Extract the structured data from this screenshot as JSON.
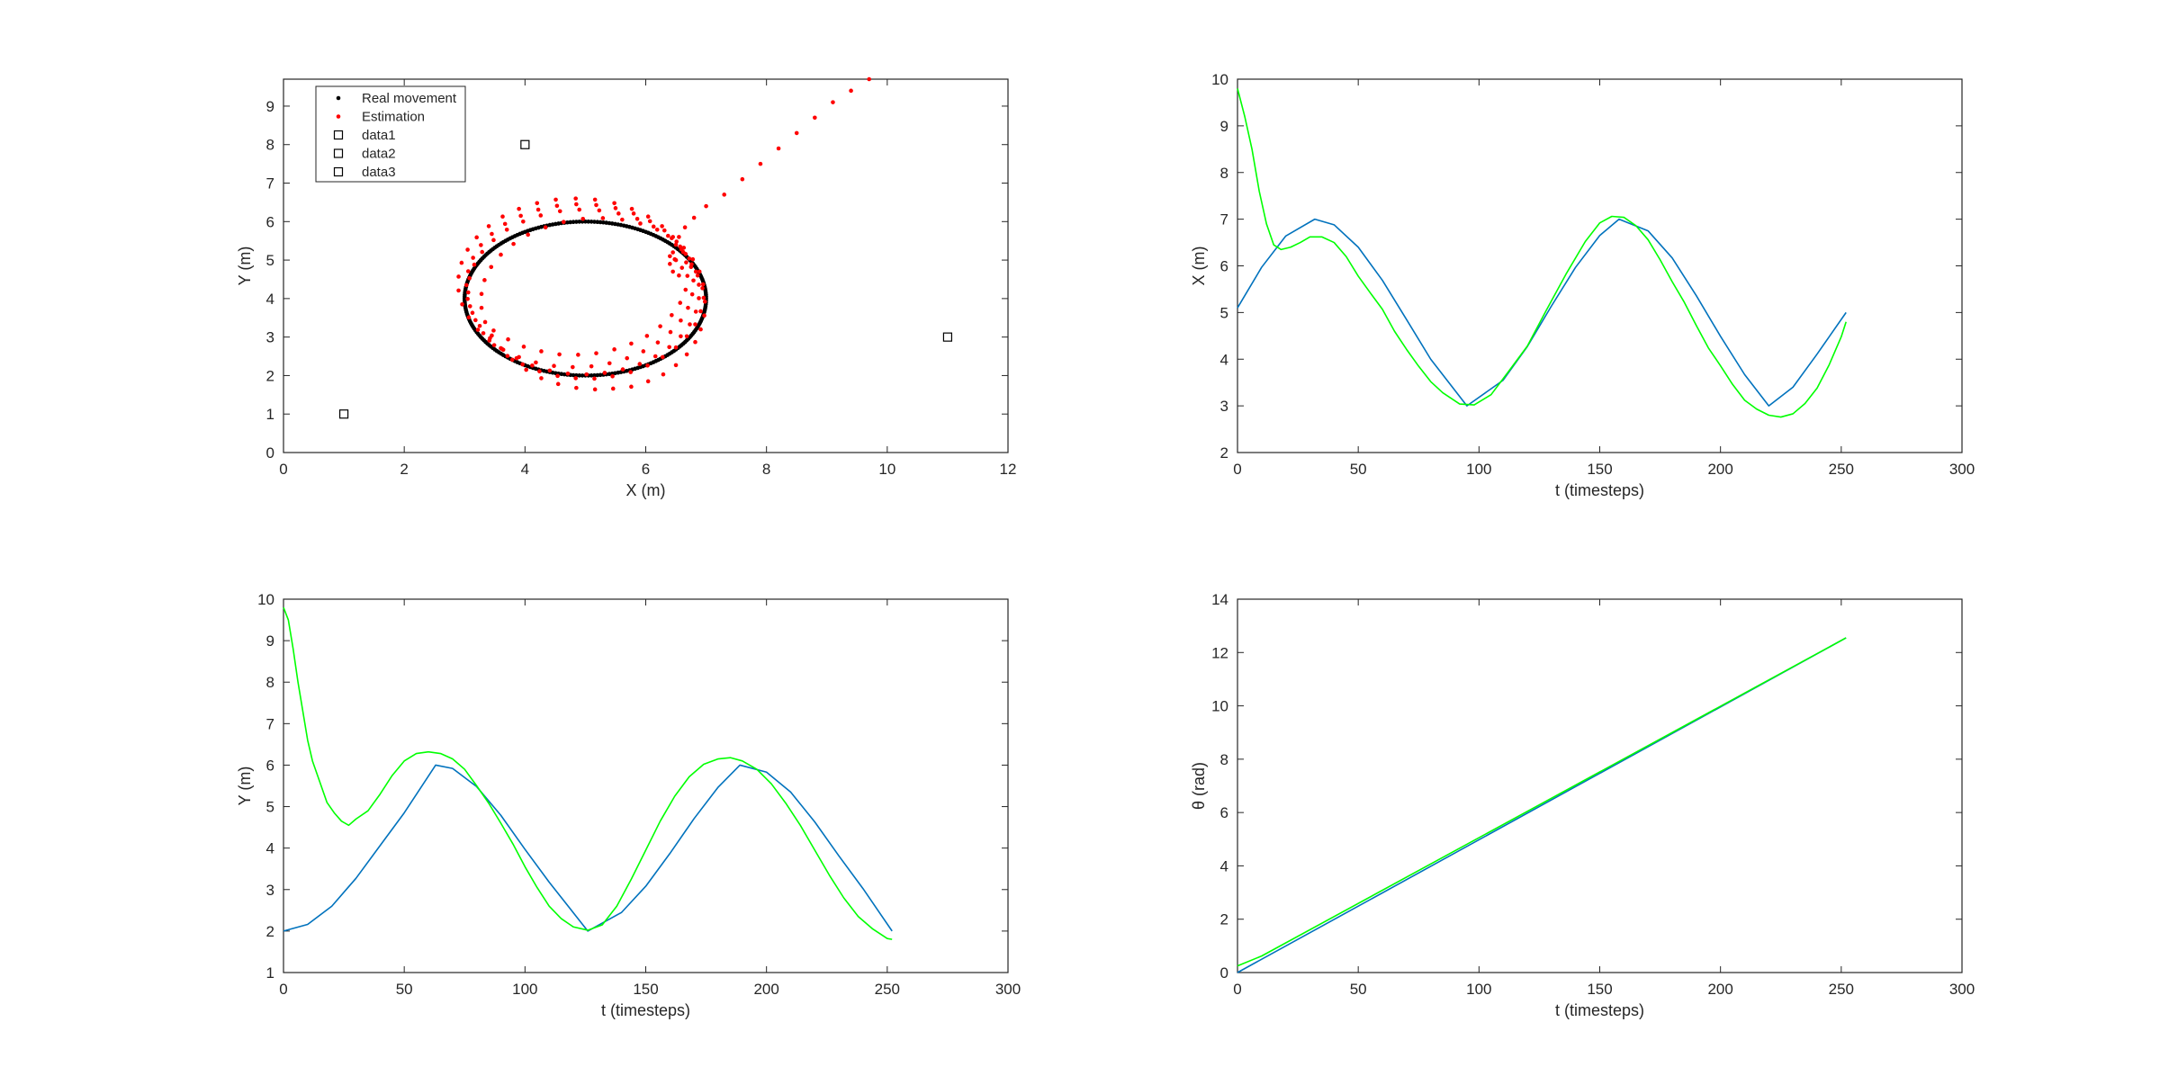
{
  "figure": {
    "panels": [
      {
        "id": "panel-trajectory",
        "xlabel": "X (m)",
        "ylabel": "Y (m)"
      },
      {
        "id": "panel-x-vs-t",
        "xlabel": "t (timesteps)",
        "ylabel": "X (m)"
      },
      {
        "id": "panel-y-vs-t",
        "xlabel": "t (timesteps)",
        "ylabel": "Y (m)"
      },
      {
        "id": "panel-theta-vs-t",
        "xlabel": "t (timesteps)",
        "ylabel": "θ (rad)"
      }
    ]
  },
  "colors": {
    "real": "#0072BD",
    "estimate": "#00FF00",
    "real_dots": "#000000",
    "estimate_dots": "#FF0000",
    "axis": "#262626"
  },
  "chart_data": [
    {
      "type": "scatter",
      "xlabel": "X (m)",
      "ylabel": "Y (m)",
      "xlim": [
        0,
        12
      ],
      "ylim": [
        0,
        9.7
      ],
      "xticks": [
        0,
        2,
        4,
        6,
        8,
        10,
        12
      ],
      "yticks": [
        0,
        1,
        2,
        3,
        4,
        5,
        6,
        7,
        8,
        9
      ],
      "grid": false,
      "legend": {
        "position": "top-left",
        "entries": [
          "Real movement",
          "Estimation",
          "data1",
          "data2",
          "data3"
        ]
      },
      "real_path": {
        "name": "Real movement",
        "shape": "circle",
        "center": [
          5,
          4
        ],
        "radius_x": 2,
        "radius_y": 2,
        "points": 252
      },
      "estimate_points": [
        [
          9.7,
          9.7
        ],
        [
          9.4,
          9.4
        ],
        [
          9.1,
          9.1
        ],
        [
          8.8,
          8.7
        ],
        [
          8.5,
          8.3
        ],
        [
          8.2,
          7.9
        ],
        [
          7.9,
          7.5
        ],
        [
          7.6,
          7.1
        ],
        [
          7.3,
          6.7
        ],
        [
          7.0,
          6.4
        ],
        [
          6.8,
          6.1
        ],
        [
          6.65,
          5.85
        ],
        [
          6.55,
          5.6
        ],
        [
          6.5,
          5.4
        ],
        [
          6.45,
          5.2
        ],
        [
          6.5,
          5.0
        ],
        [
          6.6,
          4.8
        ],
        [
          6.55,
          4.6
        ],
        [
          6.45,
          4.7
        ],
        [
          6.4,
          4.9
        ],
        [
          6.4,
          5.1
        ],
        [
          6.48,
          5.02
        ],
        [
          6.62,
          5.21
        ],
        [
          6.76,
          4.89
        ],
        [
          6.86,
          4.6
        ],
        [
          6.94,
          4.27
        ],
        [
          6.98,
          3.92
        ],
        [
          6.97,
          3.56
        ],
        [
          6.91,
          3.2
        ],
        [
          6.82,
          2.87
        ],
        [
          6.68,
          2.55
        ],
        [
          6.5,
          2.27
        ],
        [
          6.29,
          2.03
        ],
        [
          6.04,
          1.85
        ],
        [
          5.76,
          1.71
        ],
        [
          5.46,
          1.66
        ],
        [
          5.16,
          1.64
        ],
        [
          4.85,
          1.68
        ],
        [
          4.55,
          1.78
        ],
        [
          4.27,
          1.93
        ],
        [
          4.02,
          2.15
        ],
        [
          3.79,
          2.41
        ],
        [
          3.6,
          2.71
        ],
        [
          3.45,
          3.04
        ],
        [
          3.34,
          3.39
        ],
        [
          3.28,
          3.76
        ],
        [
          3.28,
          4.12
        ],
        [
          3.33,
          4.48
        ],
        [
          3.44,
          4.82
        ],
        [
          3.6,
          5.14
        ],
        [
          3.81,
          5.42
        ],
        [
          4.05,
          5.66
        ],
        [
          4.34,
          5.85
        ],
        [
          4.64,
          5.99
        ],
        [
          4.96,
          6.07
        ],
        [
          5.29,
          6.09
        ],
        [
          5.61,
          6.05
        ],
        [
          5.91,
          5.95
        ],
        [
          6.19,
          5.79
        ],
        [
          6.43,
          5.57
        ],
        [
          6.63,
          5.32
        ],
        [
          6.78,
          5.02
        ],
        [
          6.89,
          4.7
        ],
        [
          6.95,
          4.37
        ],
        [
          6.96,
          4.02
        ],
        [
          6.91,
          3.67
        ],
        [
          6.82,
          3.33
        ],
        [
          6.68,
          3.02
        ],
        [
          6.5,
          2.73
        ],
        [
          6.28,
          2.48
        ],
        [
          6.03,
          2.26
        ],
        [
          5.75,
          2.09
        ],
        [
          5.45,
          1.98
        ],
        [
          5.15,
          1.92
        ],
        [
          4.84,
          1.93
        ],
        [
          4.54,
          1.99
        ],
        [
          4.24,
          2.11
        ],
        [
          3.96,
          2.29
        ],
        [
          3.71,
          2.51
        ],
        [
          3.49,
          2.79
        ],
        [
          3.31,
          3.1
        ],
        [
          3.18,
          3.44
        ],
        [
          3.09,
          3.8
        ],
        [
          3.06,
          4.16
        ],
        [
          3.08,
          4.53
        ],
        [
          3.16,
          4.88
        ],
        [
          3.29,
          5.21
        ],
        [
          3.48,
          5.52
        ],
        [
          3.7,
          5.79
        ],
        [
          3.97,
          6.0
        ],
        [
          4.26,
          6.16
        ],
        [
          4.58,
          6.27
        ],
        [
          4.9,
          6.31
        ],
        [
          5.23,
          6.29
        ],
        [
          5.55,
          6.21
        ],
        [
          5.86,
          6.07
        ],
        [
          6.13,
          5.87
        ],
        [
          6.37,
          5.63
        ],
        [
          6.57,
          5.35
        ],
        [
          6.72,
          5.04
        ],
        [
          6.83,
          4.7
        ],
        [
          6.88,
          4.36
        ],
        [
          6.88,
          4.01
        ],
        [
          6.83,
          3.66
        ],
        [
          6.73,
          3.33
        ],
        [
          6.58,
          3.02
        ],
        [
          6.39,
          2.74
        ],
        [
          6.16,
          2.5
        ],
        [
          5.9,
          2.3
        ],
        [
          5.62,
          2.16
        ],
        [
          5.32,
          2.07
        ],
        [
          5.02,
          2.03
        ],
        [
          4.71,
          2.05
        ],
        [
          4.41,
          2.13
        ],
        [
          4.12,
          2.26
        ],
        [
          3.86,
          2.45
        ],
        [
          3.62,
          2.69
        ],
        [
          3.42,
          2.97
        ],
        [
          3.25,
          3.29
        ],
        [
          3.13,
          3.63
        ],
        [
          3.05,
          3.99
        ],
        [
          3.03,
          4.35
        ],
        [
          3.06,
          4.71
        ],
        [
          3.14,
          5.06
        ],
        [
          3.27,
          5.39
        ],
        [
          3.45,
          5.68
        ],
        [
          3.67,
          5.94
        ],
        [
          3.93,
          6.15
        ],
        [
          4.22,
          6.31
        ],
        [
          4.53,
          6.41
        ],
        [
          4.85,
          6.45
        ],
        [
          5.18,
          6.43
        ],
        [
          5.5,
          6.35
        ],
        [
          5.8,
          6.21
        ],
        [
          6.07,
          6.01
        ],
        [
          6.31,
          5.77
        ],
        [
          6.51,
          5.48
        ],
        [
          6.66,
          5.16
        ],
        [
          6.75,
          4.82
        ],
        [
          6.79,
          4.47
        ],
        [
          6.77,
          4.11
        ],
        [
          6.7,
          3.76
        ],
        [
          6.58,
          3.43
        ],
        [
          6.41,
          3.13
        ],
        [
          6.2,
          2.86
        ],
        [
          5.96,
          2.63
        ],
        [
          5.69,
          2.45
        ],
        [
          5.4,
          2.32
        ],
        [
          5.1,
          2.24
        ],
        [
          4.79,
          2.22
        ],
        [
          4.48,
          2.25
        ],
        [
          4.18,
          2.34
        ],
        [
          3.9,
          2.48
        ],
        [
          3.64,
          2.67
        ],
        [
          3.41,
          2.91
        ],
        [
          3.22,
          3.19
        ],
        [
          3.07,
          3.51
        ],
        [
          2.96,
          3.85
        ],
        [
          2.9,
          4.21
        ],
        [
          2.9,
          4.57
        ],
        [
          2.95,
          4.93
        ],
        [
          3.05,
          5.27
        ],
        [
          3.2,
          5.59
        ],
        [
          3.4,
          5.88
        ],
        [
          3.63,
          6.13
        ],
        [
          3.9,
          6.33
        ],
        [
          4.2,
          6.48
        ],
        [
          4.51,
          6.57
        ],
        [
          4.84,
          6.6
        ],
        [
          5.16,
          6.57
        ],
        [
          5.48,
          6.48
        ],
        [
          5.77,
          6.33
        ],
        [
          6.04,
          6.13
        ],
        [
          6.27,
          5.88
        ],
        [
          6.45,
          5.6
        ],
        [
          6.59,
          5.28
        ],
        [
          6.67,
          4.94
        ],
        [
          6.69,
          4.59
        ],
        [
          6.66,
          4.23
        ],
        [
          6.57,
          3.89
        ],
        [
          6.43,
          3.57
        ],
        [
          6.24,
          3.28
        ],
        [
          6.02,
          3.03
        ],
        [
          5.76,
          2.83
        ],
        [
          5.48,
          2.68
        ],
        [
          5.18,
          2.58
        ],
        [
          4.88,
          2.54
        ],
        [
          4.57,
          2.55
        ],
        [
          4.27,
          2.63
        ],
        [
          3.98,
          2.75
        ],
        [
          3.72,
          2.94
        ],
        [
          3.48,
          3.17
        ]
      ],
      "landmarks": [
        {
          "name": "data1",
          "x": 1,
          "y": 1
        },
        {
          "name": "data2",
          "x": 4,
          "y": 8
        },
        {
          "name": "data3",
          "x": 11,
          "y": 3
        }
      ]
    },
    {
      "type": "line",
      "xlabel": "t (timesteps)",
      "ylabel": "X (m)",
      "xlim": [
        0,
        300
      ],
      "ylim": [
        2,
        10
      ],
      "xticks": [
        0,
        50,
        100,
        150,
        200,
        250,
        300
      ],
      "yticks": [
        2,
        3,
        4,
        5,
        6,
        7,
        8,
        9,
        10
      ],
      "grid": false,
      "series": [
        {
          "role": "real",
          "x": [
            0,
            10,
            20,
            32,
            40,
            50,
            60,
            70,
            80,
            95,
            110,
            120,
            130,
            140,
            150,
            158,
            170,
            180,
            190,
            200,
            210,
            220,
            230,
            240,
            252
          ],
          "values": [
            5.1,
            5.97,
            6.64,
            7.0,
            6.88,
            6.4,
            5.69,
            4.85,
            4.0,
            3.0,
            3.55,
            4.27,
            5.14,
            5.97,
            6.65,
            7.0,
            6.75,
            6.17,
            5.36,
            4.49,
            3.67,
            3.0,
            3.4,
            4.11,
            5.0
          ]
        },
        {
          "role": "estimate",
          "x": [
            0,
            3,
            6,
            9,
            12,
            15,
            18,
            22,
            26,
            30,
            35,
            40,
            45,
            50,
            55,
            60,
            65,
            70,
            75,
            80,
            85,
            92,
            98,
            105,
            112,
            120,
            128,
            136,
            144,
            150,
            155,
            160,
            165,
            170,
            175,
            180,
            185,
            190,
            195,
            200,
            205,
            210,
            215,
            220,
            225,
            230,
            235,
            240,
            245,
            250,
            252
          ],
          "values": [
            9.8,
            9.2,
            8.5,
            7.6,
            6.9,
            6.45,
            6.35,
            6.4,
            6.5,
            6.62,
            6.62,
            6.5,
            6.2,
            5.78,
            5.42,
            5.07,
            4.6,
            4.21,
            3.85,
            3.52,
            3.28,
            3.04,
            3.02,
            3.24,
            3.72,
            4.28,
            5.06,
            5.82,
            6.52,
            6.92,
            7.06,
            7.04,
            6.86,
            6.56,
            6.13,
            5.66,
            5.22,
            4.72,
            4.24,
            3.86,
            3.46,
            3.12,
            2.93,
            2.8,
            2.76,
            2.83,
            3.05,
            3.38,
            3.88,
            4.48,
            4.8
          ]
        }
      ]
    },
    {
      "type": "line",
      "xlabel": "t (timesteps)",
      "ylabel": "Y (m)",
      "xlim": [
        0,
        300
      ],
      "ylim": [
        1,
        10
      ],
      "xticks": [
        0,
        50,
        100,
        150,
        200,
        250,
        300
      ],
      "yticks": [
        1,
        2,
        3,
        4,
        5,
        6,
        7,
        8,
        9,
        10
      ],
      "grid": false,
      "series": [
        {
          "role": "real",
          "x": [
            0,
            10,
            20,
            30,
            40,
            50,
            63,
            70,
            80,
            90,
            100,
            110,
            126,
            140,
            150,
            160,
            170,
            180,
            189,
            200,
            210,
            220,
            230,
            240,
            252
          ],
          "values": [
            2.0,
            2.16,
            2.6,
            3.27,
            4.06,
            4.85,
            6.0,
            5.92,
            5.48,
            4.79,
            3.97,
            3.18,
            2.0,
            2.45,
            3.08,
            3.87,
            4.71,
            5.47,
            6.0,
            5.83,
            5.35,
            4.63,
            3.81,
            3.02,
            2.0
          ]
        },
        {
          "role": "estimate",
          "x": [
            0,
            2,
            4,
            6,
            8,
            10,
            12,
            15,
            18,
            21,
            24,
            27,
            30,
            35,
            40,
            45,
            50,
            55,
            60,
            65,
            70,
            75,
            80,
            85,
            90,
            95,
            100,
            105,
            110,
            115,
            120,
            126,
            132,
            138,
            144,
            150,
            156,
            162,
            168,
            174,
            180,
            185,
            190,
            196,
            202,
            208,
            214,
            220,
            226,
            232,
            238,
            244,
            250,
            252
          ],
          "values": [
            9.8,
            9.5,
            8.8,
            8.0,
            7.3,
            6.6,
            6.1,
            5.6,
            5.1,
            4.85,
            4.65,
            4.55,
            4.7,
            4.9,
            5.3,
            5.75,
            6.1,
            6.28,
            6.32,
            6.28,
            6.15,
            5.9,
            5.5,
            5.08,
            4.6,
            4.1,
            3.55,
            3.05,
            2.6,
            2.3,
            2.1,
            2.02,
            2.15,
            2.6,
            3.25,
            3.95,
            4.65,
            5.25,
            5.72,
            6.02,
            6.15,
            6.18,
            6.1,
            5.9,
            5.55,
            5.08,
            4.55,
            3.95,
            3.35,
            2.8,
            2.35,
            2.05,
            1.82,
            1.8
          ]
        }
      ]
    },
    {
      "type": "line",
      "xlabel": "t (timesteps)",
      "ylabel": "θ (rad)",
      "xlim": [
        0,
        300
      ],
      "ylim": [
        0,
        14
      ],
      "xticks": [
        0,
        50,
        100,
        150,
        200,
        250,
        300
      ],
      "yticks": [
        0,
        2,
        4,
        6,
        8,
        10,
        12,
        14
      ],
      "grid": false,
      "series": [
        {
          "role": "real",
          "x": [
            0,
            252
          ],
          "values": [
            0.0,
            12.55
          ]
        },
        {
          "role": "estimate",
          "x": [
            0,
            10,
            252
          ],
          "values": [
            0.25,
            0.62,
            12.55
          ]
        }
      ]
    }
  ]
}
